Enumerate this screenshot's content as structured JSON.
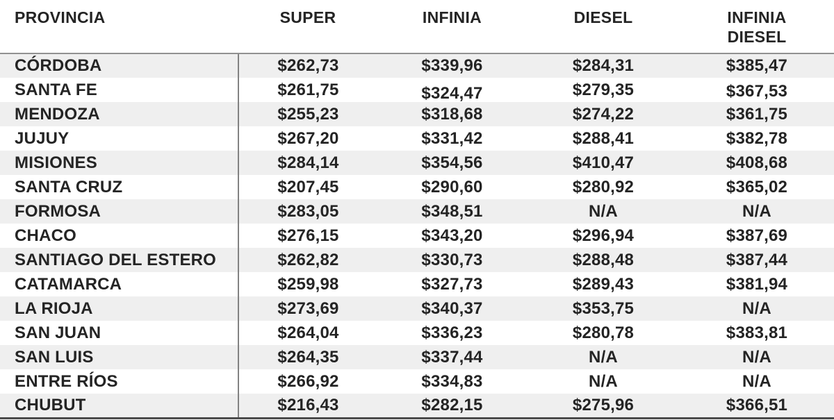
{
  "chart_data": {
    "type": "table",
    "columns": [
      "PROVINCIA",
      "SUPER",
      "INFINIA",
      "DIESEL",
      "INFINIA DIESEL"
    ],
    "rows": [
      [
        "CÓRDOBA",
        "$262,73",
        "$339,96",
        "$284,31",
        "$385,47"
      ],
      [
        "SANTA FE",
        "$261,75",
        "$324,47",
        "$279,35",
        "$367,53"
      ],
      [
        "MENDOZA",
        "$255,23",
        "$318,68",
        "$274,22",
        "$361,75"
      ],
      [
        "JUJUY",
        "$267,20",
        "$331,42",
        "$288,41",
        "$382,78"
      ],
      [
        "MISIONES",
        "$284,14",
        "$354,56",
        "$410,47",
        "$408,68"
      ],
      [
        "SANTA CRUZ",
        "$207,45",
        "$290,60",
        "$280,92",
        "$365,02"
      ],
      [
        "FORMOSA",
        "$283,05",
        "$348,51",
        "N/A",
        "N/A"
      ],
      [
        "CHACO",
        "$276,15",
        "$343,20",
        "$296,94",
        "$387,69"
      ],
      [
        "SANTIAGO DEL ESTERO",
        "$262,82",
        "$330,73",
        "$288,48",
        "$387,44"
      ],
      [
        "CATAMARCA",
        "$259,98",
        "$327,73",
        "$289,43",
        "$381,94"
      ],
      [
        "LA RIOJA",
        "$273,69",
        "$340,37",
        "$353,75",
        "N/A"
      ],
      [
        "SAN JUAN",
        "$264,04",
        "$336,23",
        "$280,78",
        "$383,81"
      ],
      [
        "SAN LUIS",
        "$264,35",
        "$337,44",
        "N/A",
        "N/A"
      ],
      [
        "ENTRE RÍOS",
        "$266,92",
        "$334,83",
        "N/A",
        "N/A"
      ],
      [
        "CHUBUT",
        "$216,43",
        "$282,15",
        "$275,96",
        "$366,51"
      ]
    ],
    "na_label": "N/A",
    "title": "",
    "legend_position": "none",
    "grid": "striped-rows"
  },
  "colors": {
    "row_stripe": "#efefef",
    "row_plain": "#ffffff",
    "text": "#242424",
    "header_rule": "#919191",
    "column_divider": "#828282",
    "bottom_rule": "#4a4a4a"
  }
}
